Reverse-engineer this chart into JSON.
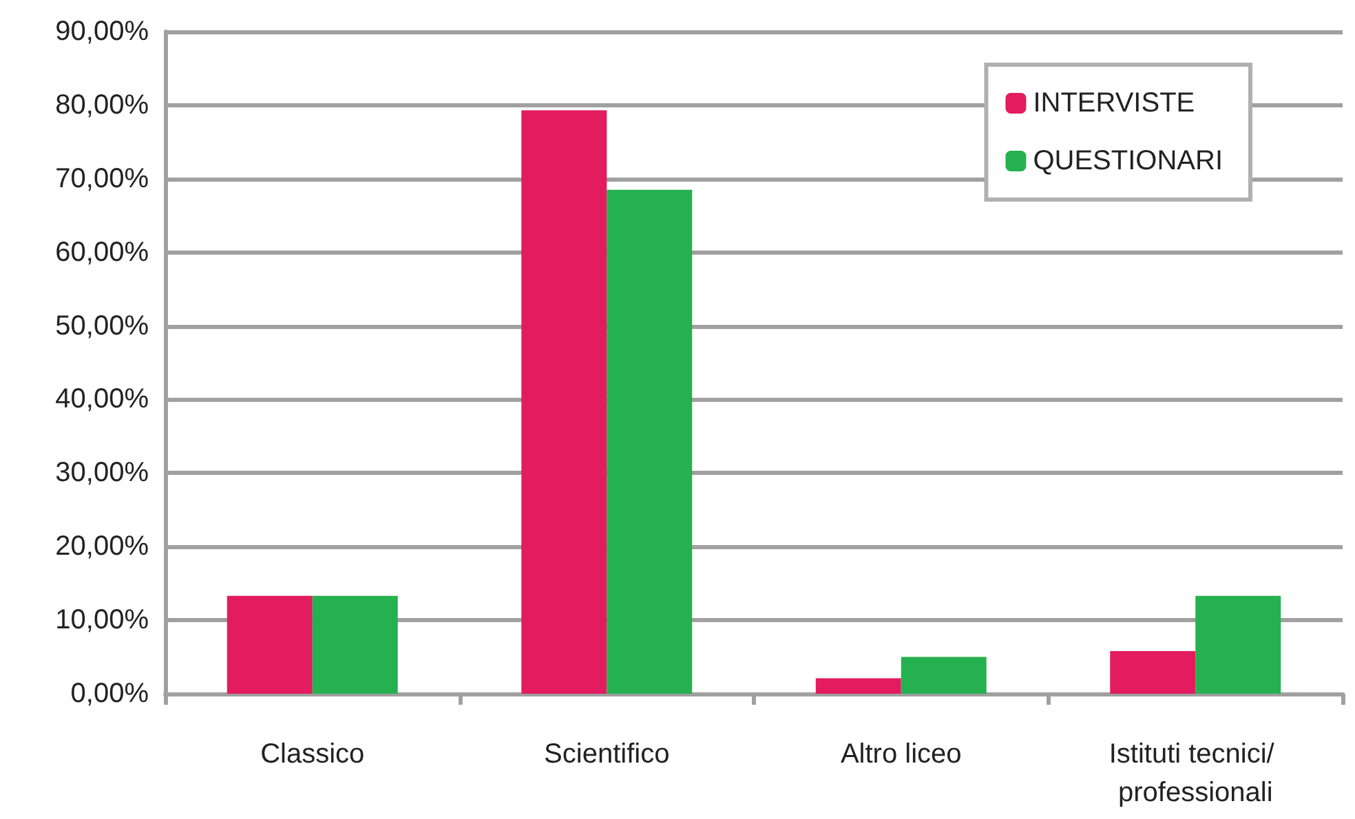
{
  "chart_data": {
    "type": "bar",
    "categories": [
      "Classico",
      "Scientifico",
      "Altro liceo",
      "Istituti tecnici/ professionali"
    ],
    "series": [
      {
        "name": "INTERVISTE",
        "color": "#e31b5f",
        "values": [
          13.3,
          79.3,
          2.1,
          5.8
        ]
      },
      {
        "name": "QUESTIONARI",
        "color": "#25b14f",
        "values": [
          13.3,
          68.5,
          5.0,
          13.3
        ]
      }
    ],
    "ylim": [
      0,
      90
    ],
    "yticks": [
      {
        "value": 0,
        "label": "0,00%"
      },
      {
        "value": 10,
        "label": "10,00%"
      },
      {
        "value": 20,
        "label": "20,00%"
      },
      {
        "value": 30,
        "label": "30,00%"
      },
      {
        "value": 40,
        "label": "40,00%"
      },
      {
        "value": 50,
        "label": "50,00%"
      },
      {
        "value": 60,
        "label": "60,00%"
      },
      {
        "value": 70,
        "label": "70,00%"
      },
      {
        "value": 80,
        "label": "80,00%"
      },
      {
        "value": 90,
        "label": "90,00%"
      }
    ],
    "grid": "y",
    "legend": "top right"
  }
}
